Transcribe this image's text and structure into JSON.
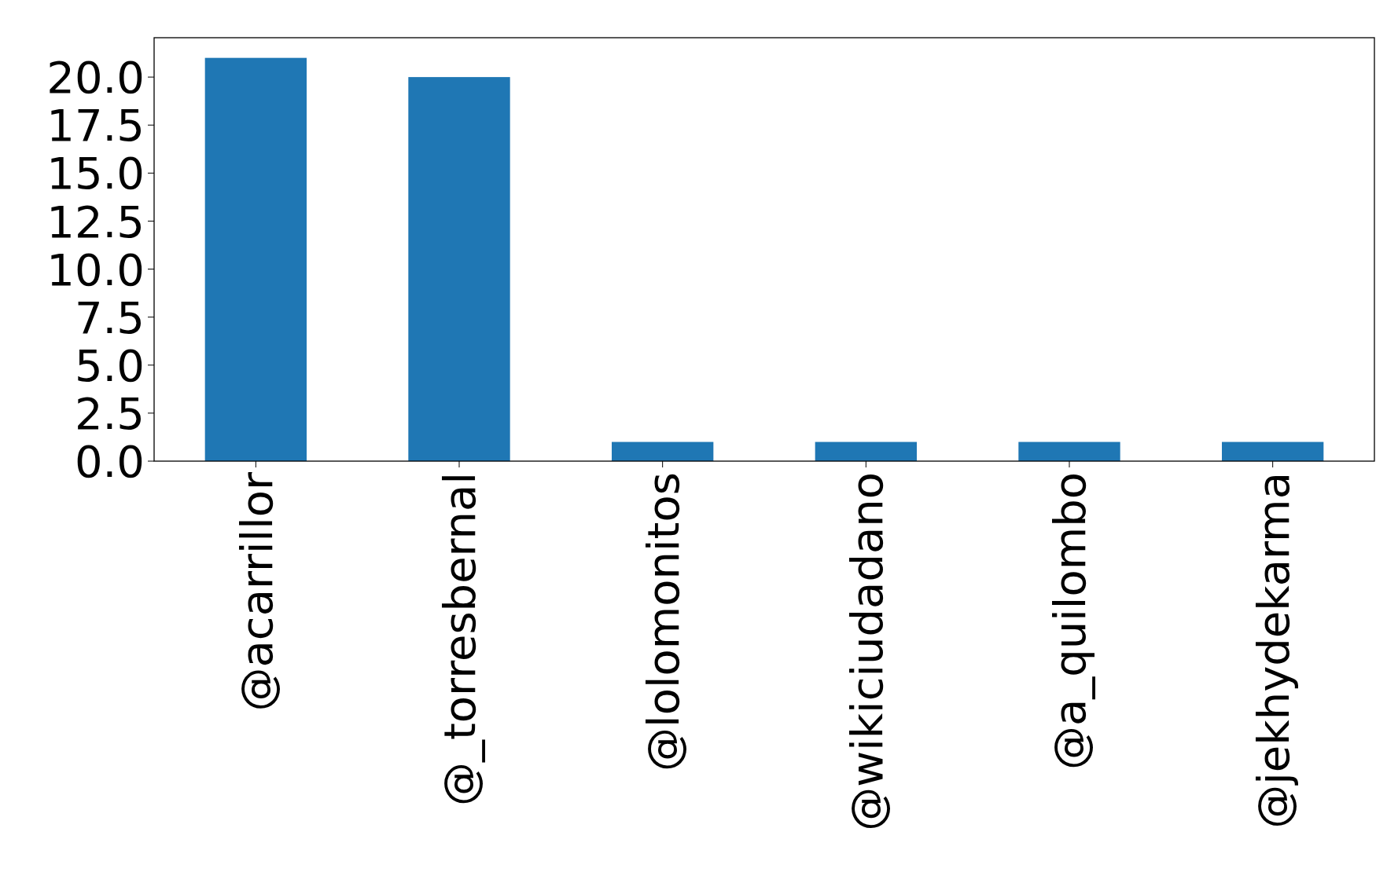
{
  "chart_data": {
    "type": "bar",
    "categories": [
      "@acarrillor",
      "@_torresbernal",
      "@lolomonitos",
      "@wikiciudadano",
      "@a_quilombo",
      "@jekhydekarma"
    ],
    "values": [
      21,
      20,
      1,
      1,
      1,
      1
    ],
    "color": "#1f77b4",
    "ylim": [
      0,
      22.05
    ],
    "yticks": [
      {
        "value": 0,
        "label": "0.0"
      },
      {
        "value": 2.5,
        "label": "2.5"
      },
      {
        "value": 5,
        "label": "5.0"
      },
      {
        "value": 7.5,
        "label": "7.5"
      },
      {
        "value": 10,
        "label": "10.0"
      },
      {
        "value": 12.5,
        "label": "12.5"
      },
      {
        "value": 15,
        "label": "15.0"
      },
      {
        "value": 17.5,
        "label": "17.5"
      },
      {
        "value": 20,
        "label": "20.0"
      }
    ]
  }
}
